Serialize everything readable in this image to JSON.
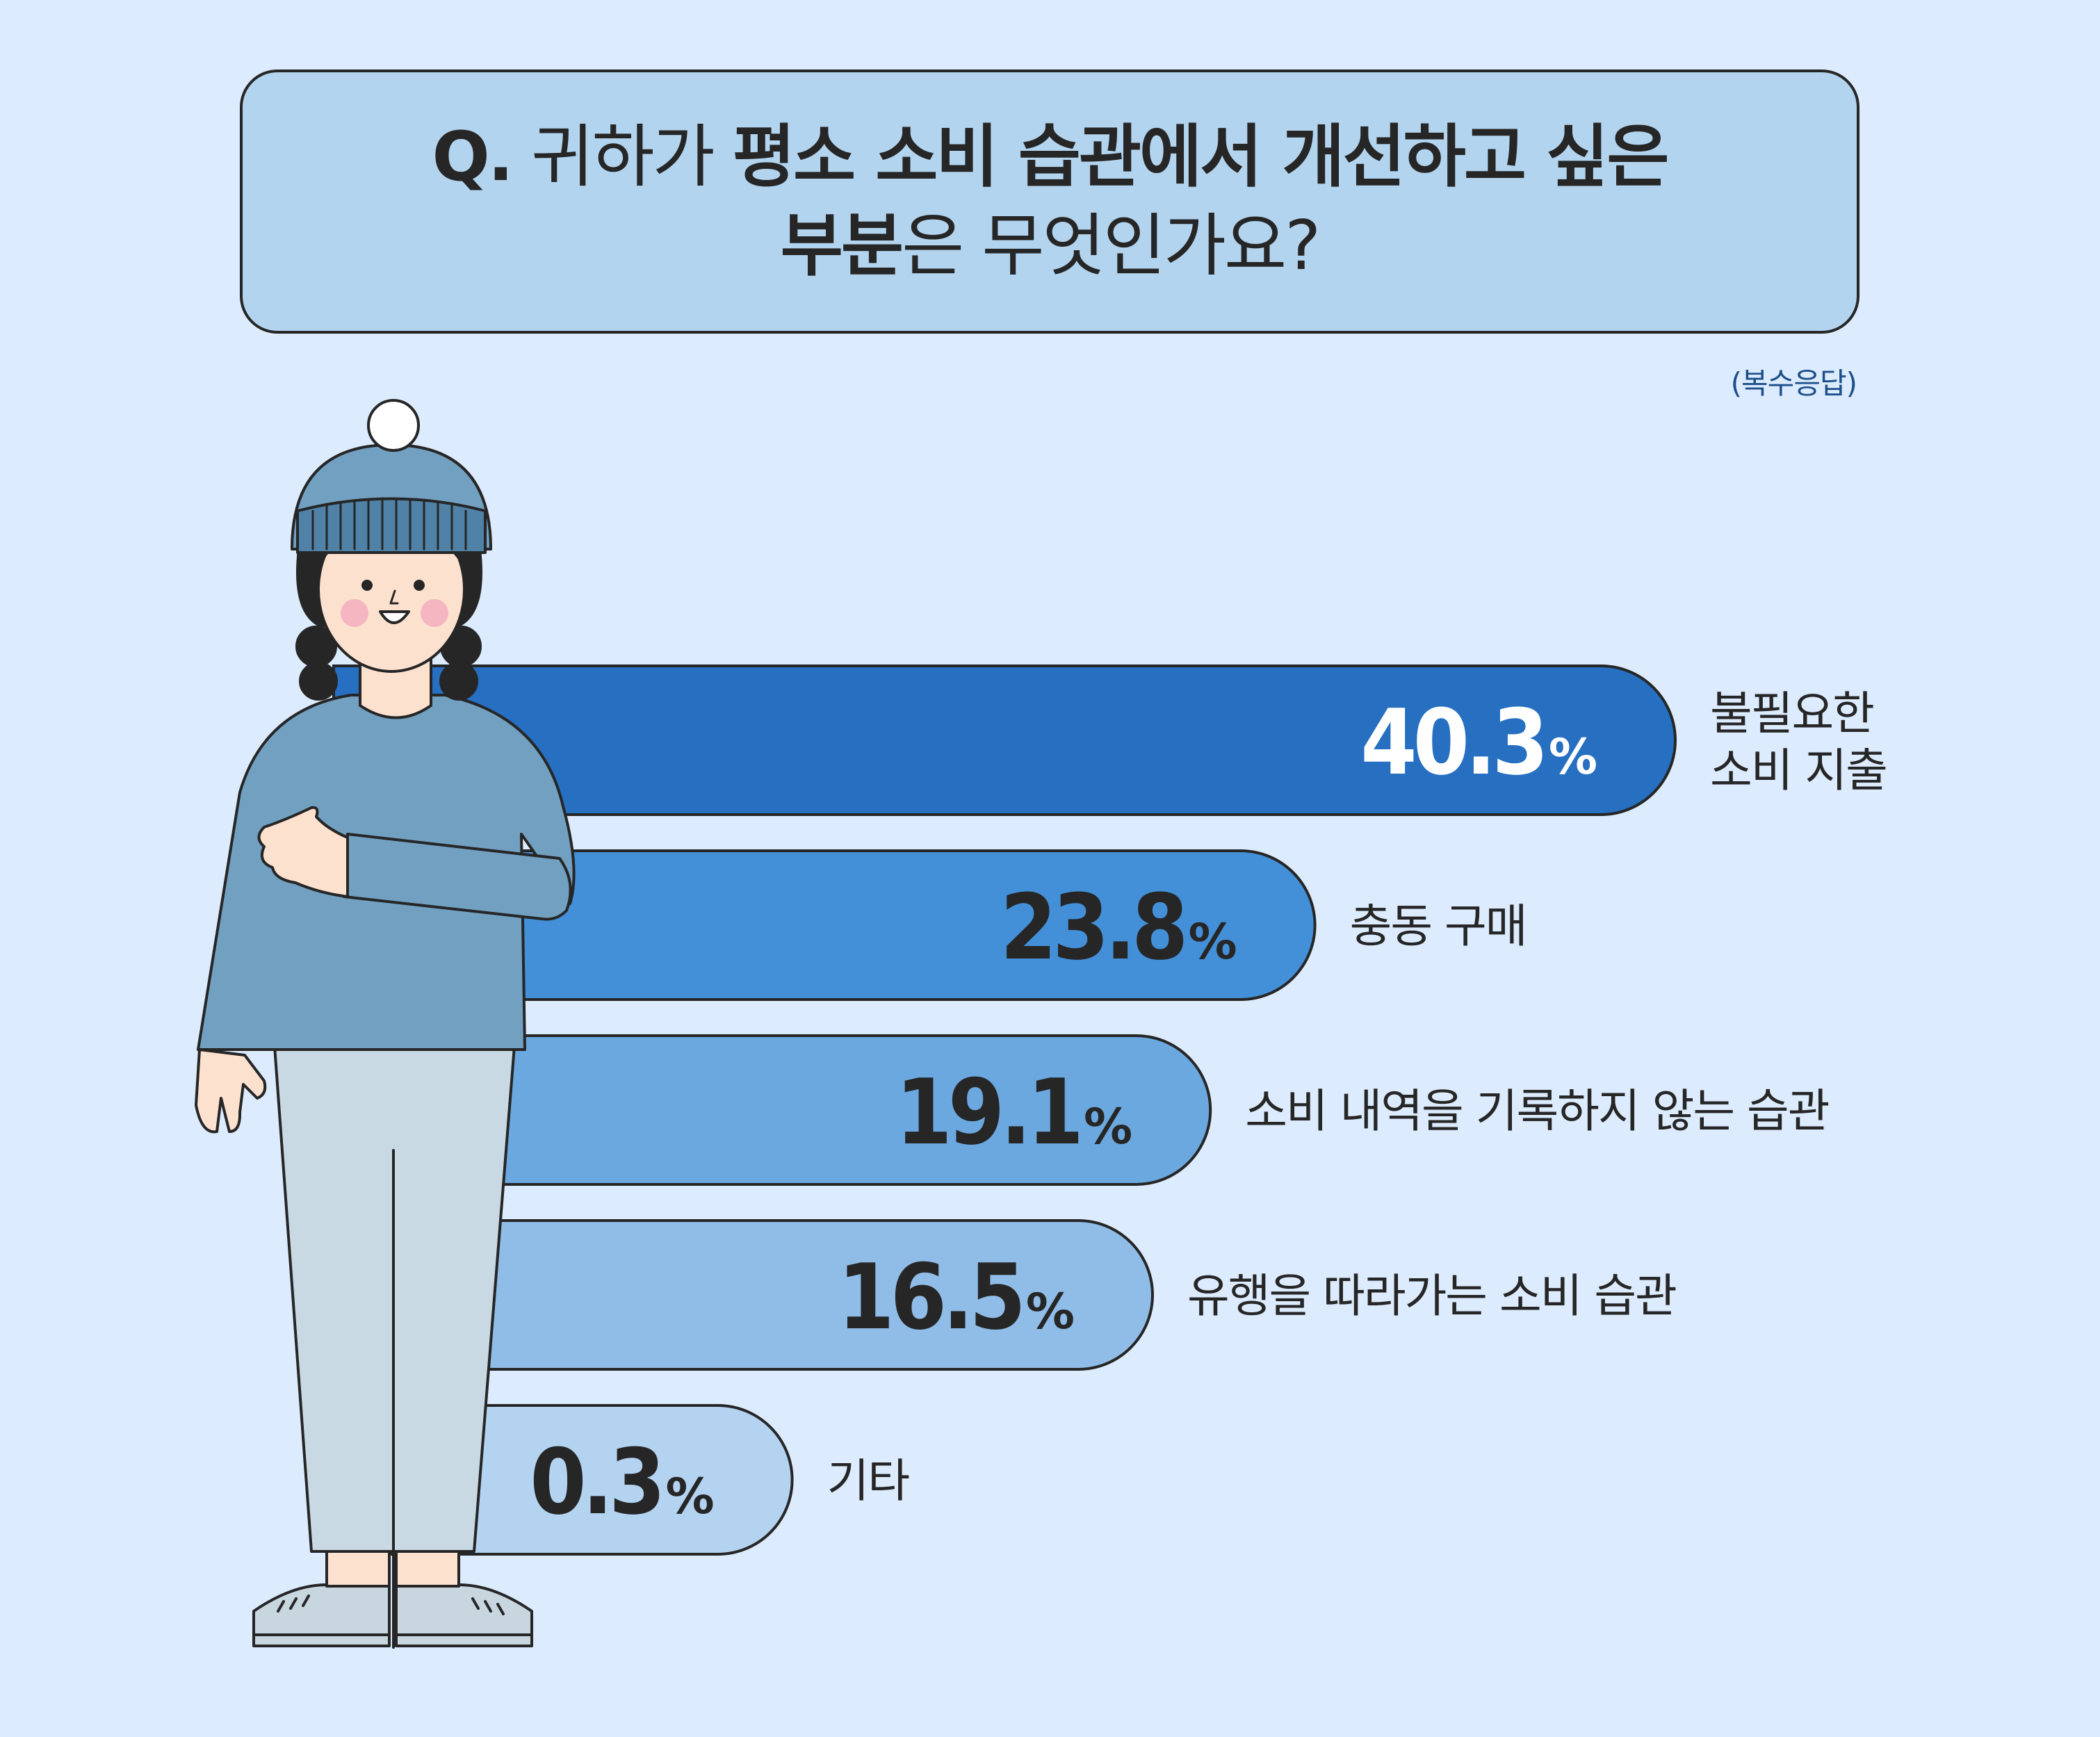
{
  "question": {
    "prefix": "Q.",
    "line1_light": "귀하가",
    "line1_bold": "평소 소비 습관에서 개선하고 싶은",
    "line2_bold": "부분",
    "line2_light": "은 무엇인가요?"
  },
  "note": "(복수응답)",
  "colors": {
    "background": "#dcebfd",
    "bars": [
      "#266fc1",
      "#4390d8",
      "#6ba8e0",
      "#8fbde8",
      "#b3d3f0"
    ],
    "value_text": [
      "#ffffff",
      "#262626",
      "#262626",
      "#262626",
      "#262626"
    ]
  },
  "chart_data": {
    "type": "bar",
    "orientation": "horizontal",
    "categories": [
      "불필요한 소비 지출",
      "충동 구매",
      "소비 내역을 기록하지 않는 습관",
      "유행을 따라가는 소비 습관",
      "기타"
    ],
    "label_lines": [
      [
        "불필요한",
        "소비 지출"
      ],
      [
        "충동 구매"
      ],
      [
        "소비 내역을 기록하지 않는 습관"
      ],
      [
        "유행을 따라가는 소비 습관"
      ],
      [
        "기타"
      ]
    ],
    "values": [
      40.3,
      23.8,
      19.1,
      16.5,
      0.3
    ],
    "value_labels": [
      "40.3",
      "23.8",
      "19.1",
      "16.5",
      "0.3"
    ],
    "unit": "%"
  }
}
